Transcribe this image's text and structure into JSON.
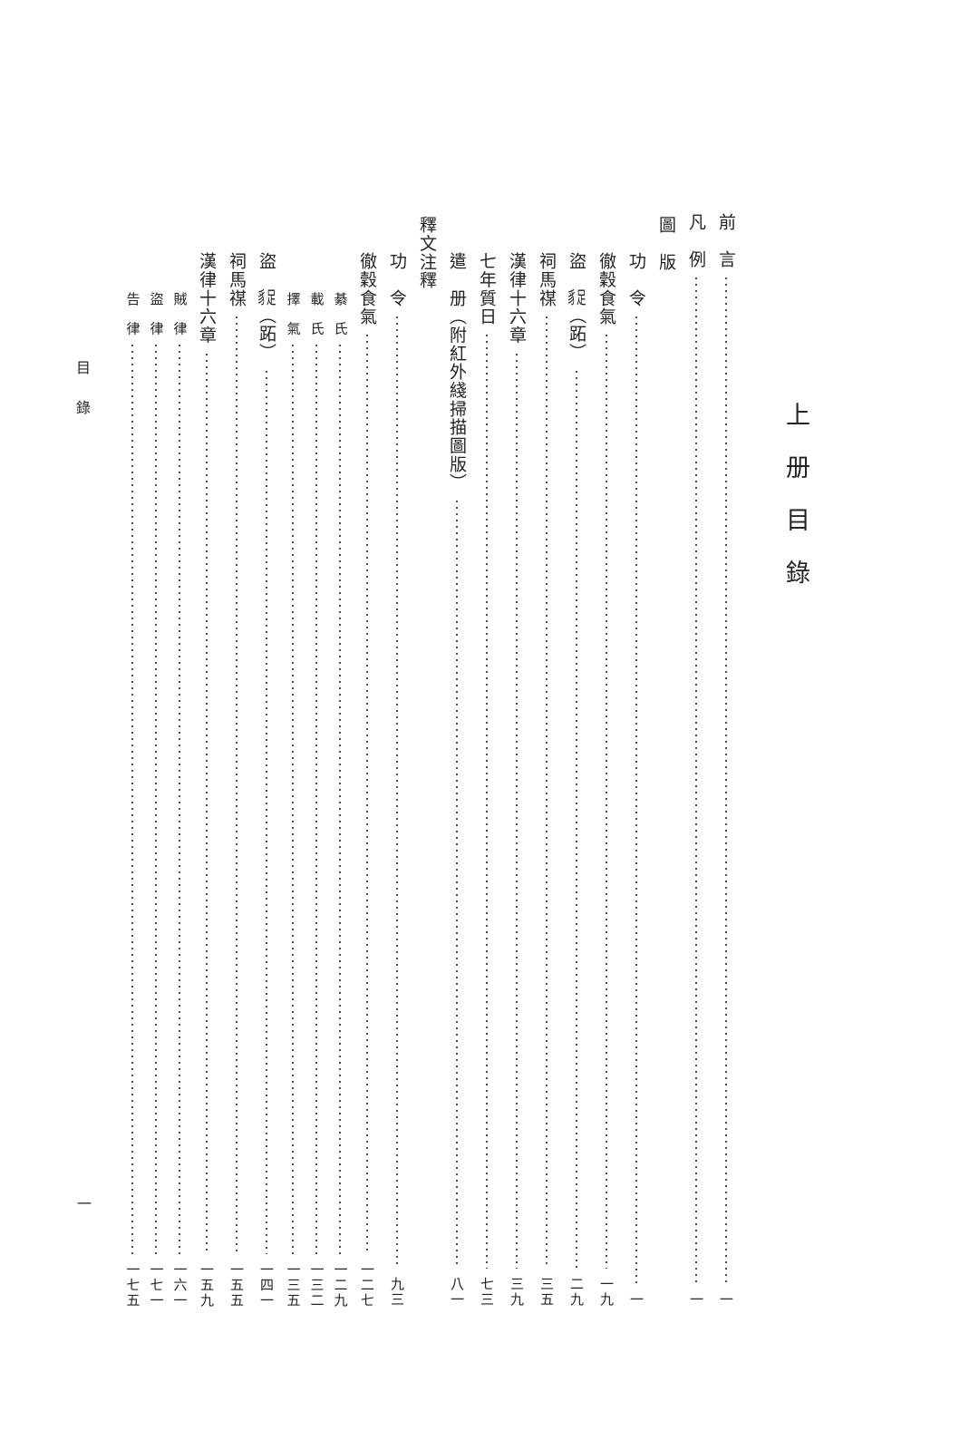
{
  "page": {
    "volume_title": "上册目錄",
    "margin_label": "目錄",
    "folio_number": "一",
    "colors": {
      "background": "#ffffff",
      "text": "#232323",
      "dots": "#4a4a4a"
    }
  },
  "toc": {
    "columns": [
      {
        "level": "front",
        "title": "前　言",
        "page": "一"
      },
      {
        "level": "front",
        "title": "凡　例",
        "page": "一"
      },
      {
        "level": "heading",
        "title": "圖　版",
        "page": null
      },
      {
        "level": "entry",
        "title": "功　令",
        "page": "一"
      },
      {
        "level": "entry",
        "title": "徹穀食氣",
        "page": "一九"
      },
      {
        "level": "entry",
        "title": "盜　⿰豸足（跖）",
        "page": "二九"
      },
      {
        "level": "entry",
        "title": "祠馬禖",
        "page": "三五"
      },
      {
        "level": "entry",
        "title": "漢律十六章",
        "page": "三九"
      },
      {
        "level": "entry",
        "title": "七年質日",
        "page": "七三"
      },
      {
        "level": "entry",
        "title": "遣　册（附紅外綫掃描圖版）",
        "page": "八一"
      },
      {
        "level": "heading",
        "title": "釋文注釋",
        "page": null
      },
      {
        "level": "entry",
        "title": "功　令",
        "page": "九三"
      },
      {
        "level": "entry",
        "title": "徹穀食氣",
        "page": "一二七"
      },
      {
        "level": "sub",
        "title": "綦　氏",
        "page": "一二九"
      },
      {
        "level": "sub",
        "title": "載　氏",
        "page": "一三二"
      },
      {
        "level": "sub",
        "title": "擇　氣",
        "page": "一三五"
      },
      {
        "level": "entry",
        "title": "盜　⿰豸足（跖）",
        "page": "一四一"
      },
      {
        "level": "entry",
        "title": "祠馬禖",
        "page": "一五五"
      },
      {
        "level": "entry",
        "title": "漢律十六章",
        "page": "一五九"
      },
      {
        "level": "sub",
        "title": "賊　律",
        "page": "一六一"
      },
      {
        "level": "sub",
        "title": "盜　律",
        "page": "一七一"
      },
      {
        "level": "sub",
        "title": "告　律",
        "page": "一七五"
      }
    ]
  }
}
